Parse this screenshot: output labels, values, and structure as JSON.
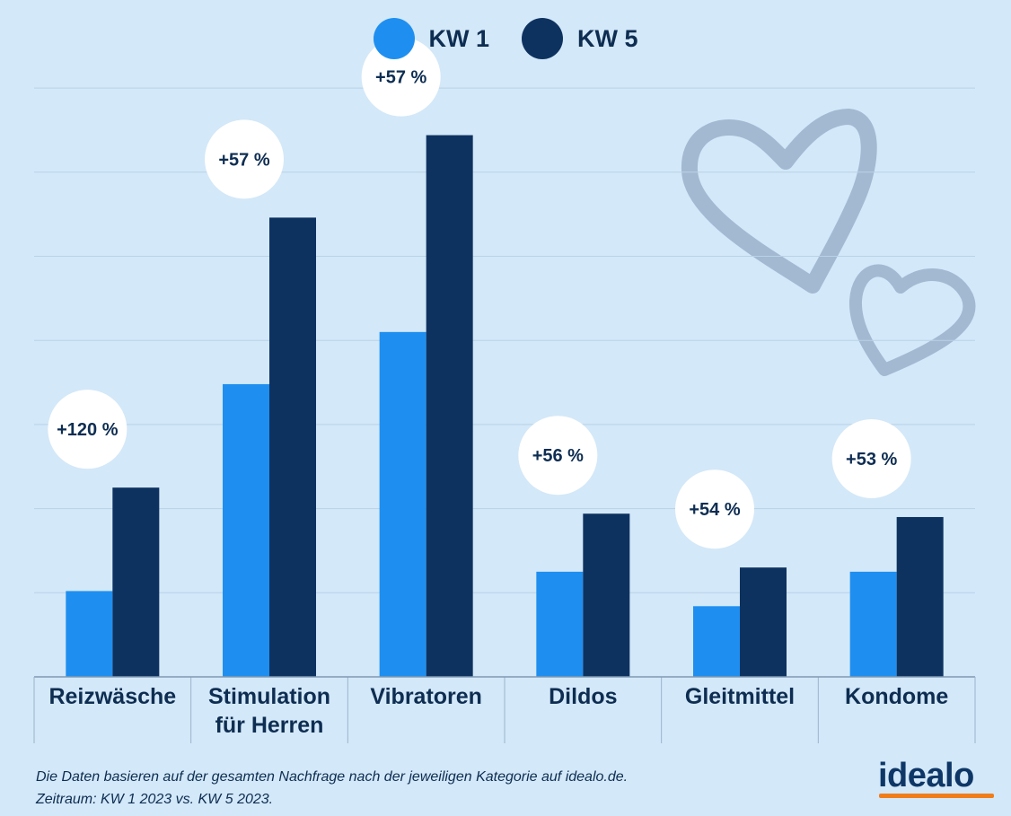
{
  "legend": {
    "items": [
      {
        "label": "KW 1",
        "color": "#1e8ff0"
      },
      {
        "label": "KW 5",
        "color": "#0e3260"
      }
    ]
  },
  "chart_data": {
    "type": "bar",
    "title": "",
    "xlabel": "",
    "ylabel": "",
    "ylim": [
      0,
      7
    ],
    "grid": true,
    "legend_position": "top-center",
    "categories": [
      [
        "Reizwäsche"
      ],
      [
        "Stimulation",
        "für Herren"
      ],
      [
        "Vibratoren"
      ],
      [
        "Dildos"
      ],
      [
        "Gleitmittel"
      ],
      [
        "Kondome"
      ]
    ],
    "series": [
      {
        "name": "KW 1",
        "color": "#1e8ff0",
        "values": [
          1.02,
          3.48,
          4.1,
          1.25,
          0.84,
          1.25
        ]
      },
      {
        "name": "KW 5",
        "color": "#0e3260",
        "values": [
          2.25,
          5.46,
          6.44,
          1.94,
          1.3,
          1.9
        ]
      }
    ],
    "annotations": [
      "+120 %",
      "+57 %",
      "+57 %",
      "+56 %",
      "+54 %",
      "+53 %"
    ]
  },
  "footnote": {
    "line1": "Die Daten basieren auf der gesamten Nachfrage nach der jeweiligen Kategorie auf idealo.de.",
    "line2": "Zeitraum: KW 1 2023 vs. KW 5 2023."
  },
  "logo": {
    "text": "idealo",
    "accent": "#f07d1a"
  }
}
